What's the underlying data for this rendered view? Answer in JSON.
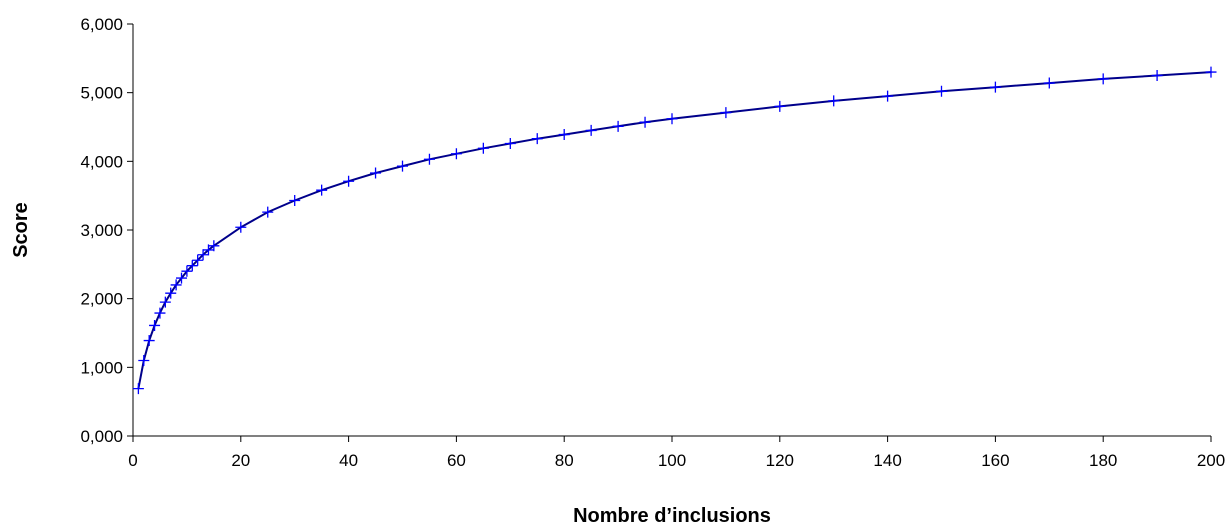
{
  "chart_data": {
    "type": "line",
    "title": "",
    "xlabel": "Nombre d’inclusions",
    "ylabel": "Score",
    "xlim": [
      0,
      200
    ],
    "ylim": [
      0,
      6
    ],
    "x_ticks": [
      0,
      20,
      40,
      60,
      80,
      100,
      120,
      140,
      160,
      180,
      200
    ],
    "x_tick_labels": [
      "0",
      "20",
      "40",
      "60",
      "80",
      "100",
      "120",
      "140",
      "160",
      "180",
      "200"
    ],
    "y_ticks": [
      0,
      1,
      2,
      3,
      4,
      5,
      6
    ],
    "y_tick_labels": [
      "0,000",
      "1,000",
      "2,000",
      "3,000",
      "4,000",
      "5,000",
      "6,000"
    ],
    "grid": false,
    "legend": "none",
    "line_color": "#00008b",
    "marker_color": "#0000ff",
    "marker": "plus",
    "series": [
      {
        "x": [
          1,
          2,
          3,
          4,
          5,
          6,
          7,
          8,
          9,
          10,
          11,
          12,
          13,
          14,
          15,
          20,
          25,
          30,
          35,
          40,
          45,
          50,
          55,
          60,
          65,
          70,
          75,
          80,
          85,
          90,
          95,
          100,
          110,
          120,
          130,
          140,
          150,
          160,
          170,
          180,
          190,
          200
        ],
        "y": [
          0.69,
          1.1,
          1.39,
          1.61,
          1.79,
          1.95,
          2.08,
          2.2,
          2.3,
          2.4,
          2.48,
          2.56,
          2.64,
          2.71,
          2.77,
          3.04,
          3.26,
          3.43,
          3.58,
          3.71,
          3.83,
          3.93,
          4.03,
          4.11,
          4.19,
          4.26,
          4.33,
          4.39,
          4.45,
          4.51,
          4.57,
          4.62,
          4.71,
          4.8,
          4.88,
          4.95,
          5.02,
          5.08,
          5.14,
          5.2,
          5.25,
          5.3
        ]
      }
    ]
  }
}
